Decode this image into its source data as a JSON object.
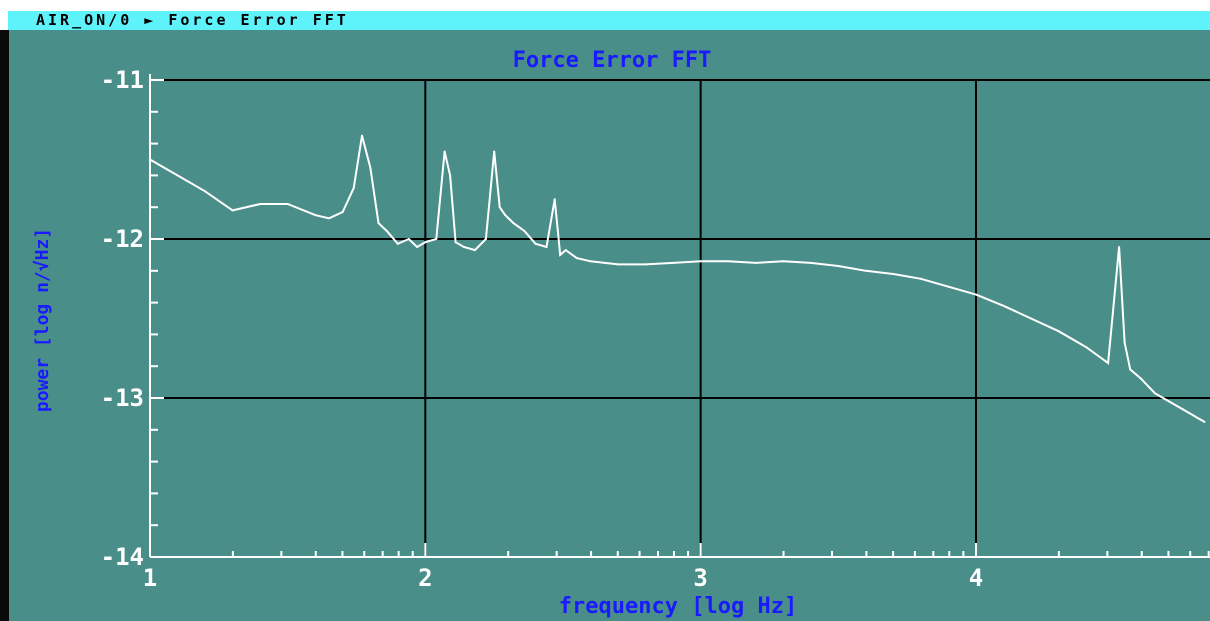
{
  "window": {
    "title": "AIR_ON/0 ► Force Error FFT"
  },
  "colors": {
    "background": "#4a8e8a",
    "title_bar": "#5ef2fb",
    "trace": "#ffffff",
    "label_blue": "#1a1aff",
    "axis": "#ffffff",
    "grid": "#000000"
  },
  "chart_data": {
    "type": "line",
    "title": "Force Error FFT",
    "xlabel": "frequency [log Hz]",
    "ylabel": "power [log n/√Hz]",
    "xlim": [
      1,
      4.85
    ],
    "ylim": [
      -14,
      -11
    ],
    "x_ticks": [
      "1",
      "2",
      "3",
      "4"
    ],
    "y_ticks": [
      "-11",
      "-12",
      "-13",
      "-14"
    ],
    "grid": true,
    "series": [
      {
        "x": [
          1.0,
          1.05,
          1.1,
          1.2,
          1.3,
          1.4,
          1.5,
          1.6,
          1.65,
          1.7,
          1.74,
          1.77,
          1.8,
          1.83,
          1.86,
          1.9,
          1.94,
          1.97,
          2.0,
          2.04,
          2.07,
          2.09,
          2.11,
          2.14,
          2.18,
          2.22,
          2.25,
          2.27,
          2.29,
          2.32,
          2.36,
          2.4,
          2.44,
          2.47,
          2.49,
          2.51,
          2.55,
          2.6,
          2.7,
          2.8,
          2.9,
          3.0,
          3.1,
          3.2,
          3.3,
          3.4,
          3.5,
          3.6,
          3.7,
          3.8,
          3.9,
          4.0,
          4.1,
          4.2,
          4.3,
          4.4,
          4.48,
          4.52,
          4.54,
          4.56,
          4.6,
          4.65,
          4.7,
          4.75,
          4.8,
          4.83
        ],
        "y": [
          -11.5,
          -11.55,
          -11.6,
          -11.7,
          -11.82,
          -11.78,
          -11.78,
          -11.85,
          -11.87,
          -11.83,
          -11.68,
          -11.35,
          -11.55,
          -11.9,
          -11.95,
          -12.03,
          -12.0,
          -12.05,
          -12.02,
          -12.0,
          -11.45,
          -11.6,
          -12.02,
          -12.05,
          -12.07,
          -12.0,
          -11.45,
          -11.8,
          -11.85,
          -11.9,
          -11.95,
          -12.03,
          -12.05,
          -11.75,
          -12.1,
          -12.07,
          -12.12,
          -12.14,
          -12.16,
          -12.16,
          -12.15,
          -12.14,
          -12.14,
          -12.15,
          -12.14,
          -12.15,
          -12.17,
          -12.2,
          -12.22,
          -12.25,
          -12.3,
          -12.35,
          -12.42,
          -12.5,
          -12.58,
          -12.68,
          -12.78,
          -12.05,
          -12.65,
          -12.82,
          -12.88,
          -12.97,
          -13.02,
          -13.07,
          -13.12,
          -13.15
        ]
      }
    ]
  }
}
